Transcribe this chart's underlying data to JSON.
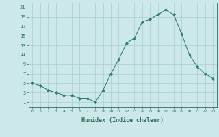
{
  "xlabel": "Humidex (Indice chaleur)",
  "ylabel": "",
  "x_values": [
    0,
    1,
    2,
    3,
    4,
    5,
    6,
    7,
    8,
    9,
    10,
    11,
    12,
    13,
    14,
    15,
    16,
    17,
    18,
    19,
    20,
    21,
    22,
    23
  ],
  "y_values": [
    5,
    4.5,
    3.5,
    3,
    2.5,
    2.5,
    1.8,
    1.8,
    1,
    3.5,
    7,
    10,
    13.5,
    14.5,
    18,
    18.5,
    19.5,
    20.5,
    19.5,
    15.5,
    11,
    8.5,
    7,
    6
  ],
  "line_color": "#2e7d6e",
  "marker_color": "#2e7d6e",
  "bg_color": "#cce8e8",
  "grid_color": "#aacece",
  "tick_color": "#2e6e60",
  "label_color": "#2e6e60",
  "xlim": [
    -0.5,
    23.5
  ],
  "ylim": [
    0,
    22
  ],
  "yticks": [
    1,
    3,
    5,
    7,
    9,
    11,
    13,
    15,
    17,
    19,
    21
  ],
  "xticks": [
    0,
    1,
    2,
    3,
    4,
    5,
    6,
    7,
    8,
    9,
    10,
    11,
    12,
    13,
    14,
    15,
    16,
    17,
    18,
    19,
    20,
    21,
    22,
    23
  ]
}
